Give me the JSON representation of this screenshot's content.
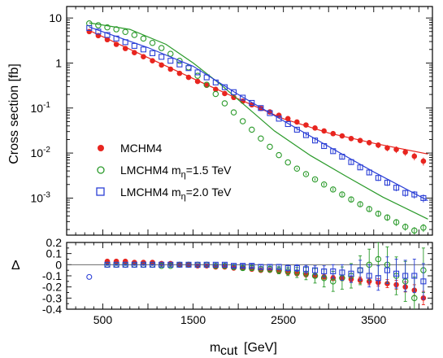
{
  "chart_data": [
    {
      "type": "scatter",
      "title": "",
      "ylabel": "Cross section  [fb]",
      "yscale": "log",
      "ylim": [
        0.00015,
        18
      ],
      "xlim": [
        100,
        4150
      ],
      "grid": false,
      "legend_position": "center-left",
      "ytick_labels": [
        {
          "value": 10,
          "label": "10",
          "exp": ""
        },
        {
          "value": 1,
          "label": "1",
          "exp": ""
        },
        {
          "value": 0.1,
          "label": "10",
          "exp": "-1"
        },
        {
          "value": 0.01,
          "label": "10",
          "exp": "-2"
        },
        {
          "value": 0.001,
          "label": "10",
          "exp": "-3"
        }
      ],
      "legend": [
        {
          "text": "MCHM4",
          "sub": "",
          "value": ""
        },
        {
          "text": "LMCHM4  m",
          "sub": "η",
          "value": "=1.5 TeV"
        },
        {
          "text": "LMCHM4  m",
          "sub": "η",
          "value": "=2.0 TeV"
        }
      ],
      "series": [
        {
          "name": "MCHM4",
          "color": "#e8251f",
          "marker": "filled-circle",
          "x": [
            350,
            450,
            550,
            650,
            750,
            850,
            950,
            1050,
            1150,
            1250,
            1350,
            1450,
            1550,
            1650,
            1750,
            1850,
            1950,
            2050,
            2150,
            2250,
            2350,
            2450,
            2550,
            2650,
            2750,
            2850,
            2950,
            3050,
            3150,
            3250,
            3350,
            3450,
            3550,
            3650,
            3750,
            3850,
            3950,
            4050
          ],
          "y": [
            5.0,
            4.05,
            3.3,
            2.6,
            2.1,
            1.7,
            1.38,
            1.12,
            0.9,
            0.73,
            0.59,
            0.48,
            0.39,
            0.32,
            0.26,
            0.21,
            0.172,
            0.142,
            0.118,
            0.098,
            0.082,
            0.069,
            0.058,
            0.049,
            0.042,
            0.036,
            0.031,
            0.027,
            0.024,
            0.021,
            0.019,
            0.017,
            0.015,
            0.013,
            0.012,
            0.0105,
            0.0085,
            0.0066
          ],
          "fit_x": [
            350,
            1000,
            1500,
            2000,
            2500,
            3000,
            3500,
            4100
          ],
          "fit_y": [
            5.3,
            1.32,
            0.45,
            0.16,
            0.058,
            0.028,
            0.0165,
            0.0095
          ]
        },
        {
          "name": "LMCHM4 mη=1.5 TeV",
          "color": "#2a9a2a",
          "marker": "open-circle",
          "x": [
            350,
            450,
            550,
            650,
            750,
            850,
            950,
            1050,
            1150,
            1250,
            1350,
            1450,
            1550,
            1650,
            1750,
            1850,
            1950,
            2050,
            2150,
            2250,
            2350,
            2450,
            2550,
            2650,
            2750,
            2850,
            2950,
            3050,
            3150,
            3250,
            3350,
            3450,
            3550,
            3650,
            3750,
            3850,
            3950,
            4050
          ],
          "y": [
            7.6,
            6.9,
            6.2,
            5.6,
            4.9,
            4.2,
            3.5,
            2.8,
            2.15,
            1.6,
            1.12,
            0.8,
            0.52,
            0.33,
            0.205,
            0.127,
            0.08,
            0.051,
            0.033,
            0.021,
            0.0138,
            0.009,
            0.0062,
            0.0045,
            0.0034,
            0.0026,
            0.002,
            0.00155,
            0.0012,
            0.00093,
            0.00073,
            0.00057,
            0.00045,
            0.00037,
            0.00029,
            0.00023,
            0.00019,
            0.00022
          ],
          "fit_x": [
            350,
            800,
            1200,
            1500,
            1800,
            2100,
            2400,
            2800,
            3200,
            3600,
            4100
          ],
          "fit_y": [
            7.8,
            5.6,
            2.6,
            1.0,
            0.34,
            0.103,
            0.031,
            0.0088,
            0.003,
            0.00105,
            0.00034
          ]
        },
        {
          "name": "LMCHM4 mη=2.0 TeV",
          "color": "#2b3fd6",
          "marker": "open-square",
          "x": [
            350,
            450,
            550,
            650,
            750,
            850,
            950,
            1050,
            1150,
            1250,
            1350,
            1450,
            1550,
            1650,
            1750,
            1850,
            1950,
            2050,
            2150,
            2250,
            2350,
            2450,
            2550,
            2650,
            2750,
            2850,
            2950,
            3050,
            3150,
            3250,
            3350,
            3450,
            3550,
            3650,
            3750,
            3850,
            3950,
            4050
          ],
          "y": [
            6.0,
            5.0,
            4.2,
            3.5,
            2.9,
            2.4,
            2.0,
            1.65,
            1.37,
            1.12,
            0.93,
            0.77,
            0.62,
            0.48,
            0.37,
            0.29,
            0.225,
            0.17,
            0.13,
            0.1,
            0.077,
            0.058,
            0.044,
            0.033,
            0.025,
            0.019,
            0.0143,
            0.011,
            0.0083,
            0.0063,
            0.0048,
            0.0037,
            0.0028,
            0.0022,
            0.0017,
            0.0013,
            0.0012,
            0.001
          ],
          "fit_x": [
            350,
            1000,
            1500,
            2000,
            2500,
            3000,
            3500,
            4100
          ],
          "fit_y": [
            6.3,
            2.2,
            0.85,
            0.2,
            0.052,
            0.014,
            0.0038,
            0.00088
          ]
        }
      ]
    },
    {
      "type": "scatter",
      "xlabel": "m",
      "xlabel_sub": "cut",
      "xlabel_unit": "[GeV]",
      "ylabel": "Δ",
      "ylim": [
        -0.4,
        0.2
      ],
      "xlim": [
        100,
        4150
      ],
      "grid": false,
      "reference_line": 0,
      "x_tick_labels": [
        "500",
        "1500",
        "2500",
        "3500"
      ],
      "x_tick_values": [
        500,
        1500,
        2500,
        3500
      ],
      "y_tick_labels": [
        "0.2",
        "0.1",
        "0",
        "-0.1",
        "-0.2",
        "-0.3",
        "-0.4"
      ],
      "y_tick_values": [
        0.2,
        0.1,
        0,
        -0.1,
        -0.2,
        -0.3,
        -0.4
      ],
      "series": [
        {
          "name": "MCHM4",
          "color": "#e8251f",
          "marker": "filled-circle",
          "x": [
            550,
            650,
            750,
            850,
            950,
            1050,
            1150,
            1250,
            1350,
            1450,
            1550,
            1650,
            1750,
            1850,
            1950,
            2050,
            2150,
            2250,
            2350,
            2450,
            2550,
            2650,
            2750,
            2850,
            2950,
            3050,
            3150,
            3250,
            3350,
            3450,
            3550,
            3650,
            3750,
            3850,
            3950,
            4050
          ],
          "y": [
            0.03,
            0.03,
            0.03,
            0.02,
            0.02,
            0.02,
            0.01,
            0.01,
            0.0,
            0.0,
            -0.01,
            -0.01,
            -0.02,
            -0.02,
            -0.03,
            -0.03,
            -0.04,
            -0.05,
            -0.05,
            -0.06,
            -0.07,
            -0.08,
            -0.09,
            -0.1,
            -0.11,
            -0.12,
            -0.12,
            -0.13,
            -0.14,
            -0.15,
            -0.16,
            -0.17,
            -0.18,
            -0.2,
            -0.23,
            -0.3
          ],
          "err": [
            0.005,
            0.005,
            0.005,
            0.005,
            0.005,
            0.005,
            0.005,
            0.005,
            0.005,
            0.005,
            0.006,
            0.006,
            0.006,
            0.007,
            0.007,
            0.008,
            0.008,
            0.009,
            0.01,
            0.01,
            0.012,
            0.014,
            0.016,
            0.018,
            0.02,
            0.022,
            0.024,
            0.026,
            0.028,
            0.03,
            0.033,
            0.036,
            0.04,
            0.045,
            0.05,
            0.06
          ]
        },
        {
          "name": "LMCHM4 mη=1.5 TeV",
          "color": "#2a9a2a",
          "marker": "open-circle",
          "x": [
            550,
            650,
            750,
            850,
            950,
            1050,
            1150,
            1250,
            1350,
            1450,
            1550,
            1650,
            1750,
            1850,
            1950,
            2050,
            2150,
            2250,
            2350,
            2450,
            2550,
            2650,
            2750,
            2850,
            2950,
            3050,
            3150,
            3250,
            3350,
            3450,
            3550,
            3650,
            3750,
            3850,
            3950,
            4050
          ],
          "y": [
            0.0,
            0.0,
            0.0,
            0.0,
            0.0,
            0.0,
            -0.01,
            -0.01,
            0.0,
            0.0,
            0.0,
            0.0,
            -0.01,
            -0.01,
            -0.02,
            -0.03,
            -0.03,
            -0.04,
            -0.04,
            -0.05,
            -0.06,
            -0.07,
            -0.08,
            -0.1,
            -0.12,
            -0.15,
            -0.12,
            -0.1,
            -0.05,
            0.0,
            0.05,
            0.0,
            -0.1,
            -0.15,
            -0.3,
            -0.05
          ],
          "err": [
            0.006,
            0.006,
            0.006,
            0.006,
            0.006,
            0.006,
            0.007,
            0.007,
            0.008,
            0.008,
            0.009,
            0.01,
            0.011,
            0.013,
            0.015,
            0.018,
            0.02,
            0.023,
            0.027,
            0.032,
            0.038,
            0.045,
            0.055,
            0.065,
            0.08,
            0.09,
            0.1,
            0.11,
            0.13,
            0.14,
            0.15,
            0.16,
            0.17,
            0.18,
            0.19,
            0.2
          ]
        },
        {
          "name": "LMCHM4 mη=2.0 TeV",
          "color": "#2b3fd6",
          "marker": "open-square",
          "x": [
            550,
            650,
            750,
            850,
            950,
            1050,
            1150,
            1250,
            1350,
            1450,
            1550,
            1650,
            1750,
            1850,
            1950,
            2050,
            2150,
            2250,
            2350,
            2450,
            2550,
            2650,
            2750,
            2850,
            2950,
            3050,
            3150,
            3250,
            3350,
            3450,
            3550,
            3650,
            3750,
            3850,
            3950,
            4050
          ],
          "y": [
            0.0,
            0.0,
            0.0,
            0.0,
            0.0,
            0.0,
            0.0,
            0.0,
            0.0,
            0.0,
            0.0,
            0.0,
            0.0,
            0.0,
            -0.01,
            -0.01,
            -0.01,
            -0.02,
            -0.02,
            -0.02,
            -0.03,
            -0.03,
            -0.04,
            -0.05,
            -0.06,
            -0.06,
            -0.07,
            -0.08,
            -0.05,
            -0.1,
            -0.12,
            -0.05,
            -0.08,
            -0.1,
            -0.1,
            -0.15
          ],
          "err": [
            0.005,
            0.005,
            0.005,
            0.005,
            0.005,
            0.005,
            0.005,
            0.006,
            0.006,
            0.006,
            0.007,
            0.008,
            0.009,
            0.01,
            0.012,
            0.014,
            0.016,
            0.018,
            0.02,
            0.023,
            0.026,
            0.03,
            0.034,
            0.04,
            0.05,
            0.06,
            0.07,
            0.08,
            0.09,
            0.1,
            0.11,
            0.12,
            0.13,
            0.14,
            0.15,
            0.16
          ]
        }
      ],
      "extra_point": {
        "x": 350,
        "y": -0.11,
        "color": "#2b3fd6"
      }
    }
  ]
}
